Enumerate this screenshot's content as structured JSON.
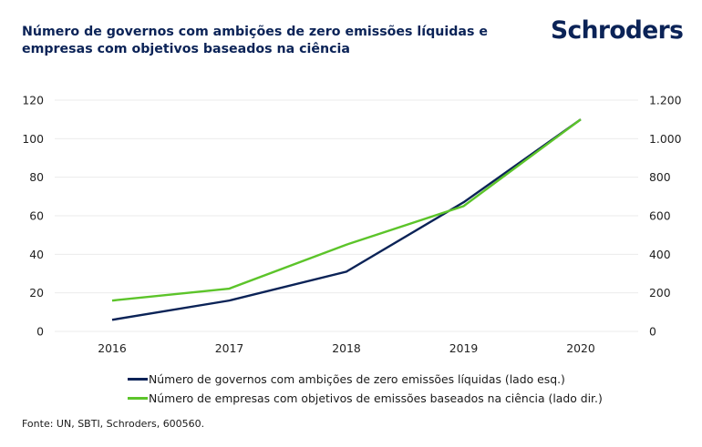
{
  "header": {
    "title": "Número de governos com ambições de zero emissões líquidas e empresas com objetivos baseados na ciência",
    "logo": "Schroders"
  },
  "colors": {
    "navy": "#0b2357",
    "green": "#5cc42a",
    "grid": "#ebebeb"
  },
  "chart_data": {
    "type": "line",
    "title": "Número de governos com ambições de zero emissões líquidas e empresas com objetivos baseados na ciência",
    "x": [
      "2016",
      "2017",
      "2018",
      "2019",
      "2020"
    ],
    "xlabel": "",
    "ylabel": "",
    "y_left": {
      "ylim": [
        0,
        120
      ],
      "ticks": [
        0,
        20,
        40,
        60,
        80,
        100,
        120
      ],
      "tick_labels": [
        "0",
        "20",
        "40",
        "60",
        "80",
        "100",
        "120"
      ]
    },
    "y_right": {
      "ylim": [
        0,
        1200
      ],
      "ticks": [
        0,
        200,
        400,
        600,
        800,
        1000,
        1200
      ],
      "tick_labels": [
        "0",
        "200",
        "400",
        "600",
        "800",
        "1.000",
        "1.200"
      ]
    },
    "grid": true,
    "legend_position": "bottom",
    "series": [
      {
        "name": "Número de governos com ambições de zero emissões líquidas (lado esq.)",
        "axis": "left",
        "color": "#0b2357",
        "values": [
          6,
          16,
          31,
          67,
          110
        ]
      },
      {
        "name": "Número de empresas com objetivos de emissões baseados na ciência (lado dir.)",
        "axis": "right",
        "color": "#5cc42a",
        "values": [
          160,
          222,
          450,
          650,
          1100
        ]
      }
    ]
  },
  "footer": {
    "source": "Fonte: UN, SBTI, Schroders, 600560."
  }
}
